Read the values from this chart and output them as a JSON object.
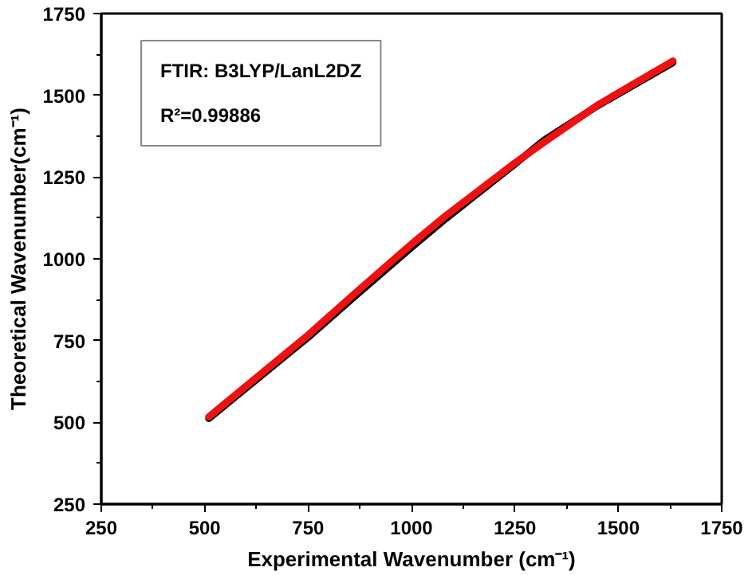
{
  "chart_data": {
    "type": "line",
    "xlabel": "Experimental Wavenumber (cm⁻¹)",
    "ylabel": "Theoretical Wavenumber(cm⁻¹)",
    "annotations": [
      "FTIR: B3LYP/LanL2DZ",
      "R²=0.99886"
    ],
    "xlim": [
      250,
      1750
    ],
    "ylim": [
      250,
      1750
    ],
    "xticks": [
      250,
      500,
      750,
      1000,
      1250,
      1500,
      1750
    ],
    "yticks": [
      250,
      500,
      750,
      1000,
      1250,
      1500,
      1750
    ],
    "grid": false,
    "marker": "none",
    "line_style": "solid",
    "series": [
      {
        "color": "#000000",
        "x": [
          510,
          750,
          870,
          1000,
          1082,
          1250,
          1320,
          1450,
          1632
        ],
        "values": [
          512,
          760,
          893,
          1035,
          1122,
          1290,
          1362,
          1468,
          1600
        ]
      },
      {
        "color": "#ee1111",
        "x": [
          510,
          750,
          870,
          1000,
          1082,
          1250,
          1320,
          1450,
          1632
        ],
        "values": [
          517,
          767,
          902,
          1045,
          1131,
          1293,
          1356,
          1470,
          1605
        ]
      }
    ]
  }
}
